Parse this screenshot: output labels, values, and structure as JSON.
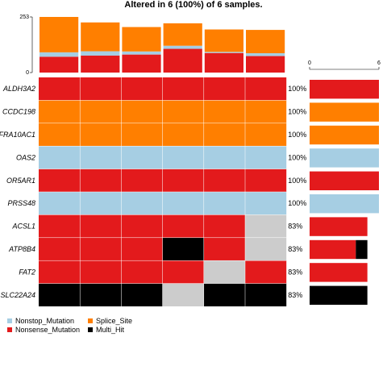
{
  "chart_data": {
    "type": "oncoplot",
    "title": "Altered in 6 (100%) of 6 samples.",
    "colors": {
      "Nonstop_Mutation": "#a6cee3",
      "Nonsense_Mutation": "#e31a1c",
      "Splice_Site": "#ff7f00",
      "Multi_Hit": "#000000",
      "none": "#cccccc"
    },
    "tmb": {
      "axis_max": 253,
      "axis_ticks": [
        "253",
        "0"
      ],
      "samples": [
        {
          "Nonsense_Mutation": 72,
          "Nonstop_Mutation": 20,
          "Splice_Site": 161
        },
        {
          "Nonsense_Mutation": 77,
          "Nonstop_Mutation": 20,
          "Splice_Site": 131
        },
        {
          "Nonsense_Mutation": 82,
          "Nonstop_Mutation": 14,
          "Splice_Site": 111
        },
        {
          "Nonsense_Mutation": 108,
          "Nonstop_Mutation": 14,
          "Splice_Site": 102
        },
        {
          "Nonsense_Mutation": 89,
          "Nonstop_Mutation": 5,
          "Splice_Site": 102
        },
        {
          "Nonsense_Mutation": 75,
          "Nonstop_Mutation": 13,
          "Splice_Site": 106
        }
      ]
    },
    "genes": [
      {
        "name": "ALDH3A2",
        "percent": "100%",
        "calls": [
          "Nonsense_Mutation",
          "Nonsense_Mutation",
          "Nonsense_Mutation",
          "Nonsense_Mutation",
          "Nonsense_Mutation",
          "Nonsense_Mutation"
        ],
        "counts": {
          "Nonsense_Mutation": 6
        }
      },
      {
        "name": "CCDC198",
        "percent": "100%",
        "calls": [
          "Splice_Site",
          "Splice_Site",
          "Splice_Site",
          "Splice_Site",
          "Splice_Site",
          "Splice_Site"
        ],
        "counts": {
          "Splice_Site": 6
        }
      },
      {
        "name": "FRA10AC1",
        "percent": "100%",
        "calls": [
          "Splice_Site",
          "Splice_Site",
          "Splice_Site",
          "Splice_Site",
          "Splice_Site",
          "Splice_Site"
        ],
        "counts": {
          "Splice_Site": 6
        }
      },
      {
        "name": "OAS2",
        "percent": "100%",
        "calls": [
          "Nonstop_Mutation",
          "Nonstop_Mutation",
          "Nonstop_Mutation",
          "Nonstop_Mutation",
          "Nonstop_Mutation",
          "Nonstop_Mutation"
        ],
        "counts": {
          "Nonstop_Mutation": 6
        }
      },
      {
        "name": "OR5AR1",
        "percent": "100%",
        "calls": [
          "Nonsense_Mutation",
          "Nonsense_Mutation",
          "Nonsense_Mutation",
          "Nonsense_Mutation",
          "Nonsense_Mutation",
          "Nonsense_Mutation"
        ],
        "counts": {
          "Nonsense_Mutation": 6
        }
      },
      {
        "name": "PRSS48",
        "percent": "100%",
        "calls": [
          "Nonstop_Mutation",
          "Nonstop_Mutation",
          "Nonstop_Mutation",
          "Nonstop_Mutation",
          "Nonstop_Mutation",
          "Nonstop_Mutation"
        ],
        "counts": {
          "Nonstop_Mutation": 6
        }
      },
      {
        "name": "ACSL1",
        "percent": "83%",
        "calls": [
          "Nonsense_Mutation",
          "Nonsense_Mutation",
          "Nonsense_Mutation",
          "Nonsense_Mutation",
          "Nonsense_Mutation",
          "none"
        ],
        "counts": {
          "Nonsense_Mutation": 5
        }
      },
      {
        "name": "ATP8B4",
        "percent": "83%",
        "calls": [
          "Nonsense_Mutation",
          "Nonsense_Mutation",
          "Nonsense_Mutation",
          "Multi_Hit",
          "Nonsense_Mutation",
          "none"
        ],
        "counts": {
          "Nonsense_Mutation": 4,
          "Multi_Hit": 1
        }
      },
      {
        "name": "FAT2",
        "percent": "83%",
        "calls": [
          "Nonsense_Mutation",
          "Nonsense_Mutation",
          "Nonsense_Mutation",
          "Nonsense_Mutation",
          "none",
          "Nonsense_Mutation"
        ],
        "counts": {
          "Nonsense_Mutation": 5
        }
      },
      {
        "name": "SLC22A24",
        "percent": "83%",
        "calls": [
          "Multi_Hit",
          "Multi_Hit",
          "Multi_Hit",
          "none",
          "Multi_Hit",
          "Multi_Hit"
        ],
        "counts": {
          "Multi_Hit": 5
        }
      }
    ],
    "gene_bar_axis": {
      "max": 6,
      "ticks": [
        "0",
        "6"
      ]
    },
    "legend": [
      {
        "label": "Nonstop_Mutation",
        "type": "Nonstop_Mutation"
      },
      {
        "label": "Splice_Site",
        "type": "Splice_Site"
      },
      {
        "label": "Nonsense_Mutation",
        "type": "Nonsense_Mutation"
      },
      {
        "label": "Multi_Hit",
        "type": "Multi_Hit"
      }
    ]
  }
}
